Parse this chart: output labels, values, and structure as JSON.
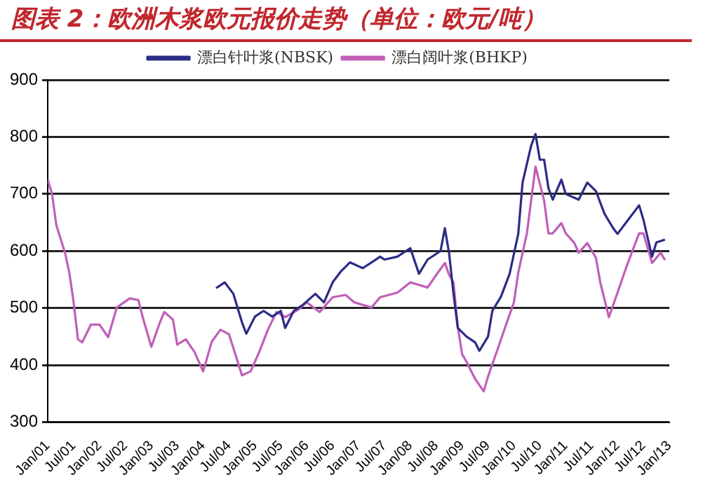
{
  "chart_data": {
    "type": "line",
    "title": "图表 2：欧洲木浆欧元报价走势（单位：欧元/吨）",
    "xlim": [
      "2001-01",
      "2013-01"
    ],
    "xticks": [
      {
        "value": "2001-01",
        "label": "Jan/01"
      },
      {
        "value": "2001-07",
        "label": "Jul/01"
      },
      {
        "value": "2002-01",
        "label": "Jan/02"
      },
      {
        "value": "2002-07",
        "label": "Jul/02"
      },
      {
        "value": "2003-01",
        "label": "Jan/03"
      },
      {
        "value": "2003-07",
        "label": "Jul/03"
      },
      {
        "value": "2004-01",
        "label": "Jan/04"
      },
      {
        "value": "2004-07",
        "label": "Jul/04"
      },
      {
        "value": "2005-01",
        "label": "Jan/05"
      },
      {
        "value": "2005-07",
        "label": "Jul/05"
      },
      {
        "value": "2006-01",
        "label": "Jan/06"
      },
      {
        "value": "2006-07",
        "label": "Jul/06"
      },
      {
        "value": "2007-01",
        "label": "Jan/07"
      },
      {
        "value": "2007-07",
        "label": "Jul/07"
      },
      {
        "value": "2008-01",
        "label": "Jan/08"
      },
      {
        "value": "2008-07",
        "label": "Jul/08"
      },
      {
        "value": "2009-01",
        "label": "Jan/09"
      },
      {
        "value": "2009-07",
        "label": "Jul/09"
      },
      {
        "value": "2010-01",
        "label": "Jan/10"
      },
      {
        "value": "2010-07",
        "label": "Jul/10"
      },
      {
        "value": "2011-01",
        "label": "Jan/11"
      },
      {
        "value": "2011-07",
        "label": "Jul/11"
      },
      {
        "value": "2012-01",
        "label": "Jan/12"
      },
      {
        "value": "2012-07",
        "label": "Jul/12"
      },
      {
        "value": "2013-01",
        "label": "Jan/13"
      }
    ],
    "ylim": [
      300,
      900
    ],
    "yticks": [
      300,
      400,
      500,
      600,
      700,
      800,
      900
    ],
    "grid": "y",
    "legend": "top",
    "marker": "none",
    "line_style": "solid",
    "series": [
      {
        "name": "漂白针叶浆(NBSK)",
        "color": "#2b2c84",
        "x": [
          "2004-04",
          "2004-06",
          "2004-08",
          "2004-10",
          "2004-11",
          "2005-01",
          "2005-03",
          "2005-05",
          "2005-07",
          "2005-08",
          "2005-10",
          "2005-12",
          "2006-03",
          "2006-05",
          "2006-07",
          "2006-09",
          "2006-11",
          "2007-02",
          "2007-04",
          "2007-06",
          "2007-07",
          "2007-10",
          "2008-01",
          "2008-03",
          "2008-05",
          "2008-08",
          "2008-09",
          "2008-10",
          "2008-11",
          "2008-12",
          "2009-02",
          "2009-04",
          "2009-05",
          "2009-07",
          "2009-08",
          "2009-10",
          "2009-12",
          "2010-02",
          "2010-03",
          "2010-05",
          "2010-06",
          "2010-07",
          "2010-08",
          "2010-09",
          "2010-10",
          "2010-12",
          "2011-01",
          "2011-04",
          "2011-06",
          "2011-08",
          "2011-10",
          "2011-12",
          "2012-01",
          "2012-03",
          "2012-06",
          "2012-07",
          "2012-09",
          "2012-10",
          "2012-12"
        ],
        "values": [
          535,
          545,
          525,
          475,
          455,
          485,
          495,
          485,
          495,
          465,
          495,
          505,
          525,
          510,
          545,
          565,
          580,
          570,
          580,
          590,
          585,
          590,
          605,
          560,
          585,
          600,
          640,
          595,
          525,
          465,
          450,
          440,
          425,
          450,
          495,
          520,
          560,
          630,
          720,
          785,
          805,
          760,
          760,
          710,
          690,
          725,
          700,
          690,
          720,
          705,
          665,
          640,
          630,
          650,
          680,
          655,
          590,
          615,
          620
        ]
      },
      {
        "name": "漂白阔叶浆(BHKP)",
        "color": "#c05fb8",
        "x": [
          "2001-01",
          "2001-02",
          "2001-03",
          "2001-05",
          "2001-06",
          "2001-07",
          "2001-08",
          "2001-09",
          "2001-11",
          "2002-01",
          "2002-03",
          "2002-05",
          "2002-08",
          "2002-10",
          "2002-11",
          "2003-01",
          "2003-03",
          "2003-04",
          "2003-06",
          "2003-07",
          "2003-09",
          "2003-11",
          "2004-01",
          "2004-03",
          "2004-05",
          "2004-07",
          "2004-09",
          "2004-10",
          "2004-12",
          "2005-02",
          "2005-04",
          "2005-06",
          "2005-08",
          "2005-11",
          "2006-01",
          "2006-04",
          "2006-07",
          "2006-10",
          "2006-12",
          "2007-04",
          "2007-06",
          "2007-10",
          "2008-01",
          "2008-05",
          "2008-07",
          "2008-09",
          "2008-10",
          "2008-11",
          "2008-12",
          "2009-01",
          "2009-02",
          "2009-04",
          "2009-06",
          "2009-07",
          "2009-09",
          "2009-11",
          "2010-01",
          "2010-02",
          "2010-04",
          "2010-06",
          "2010-07",
          "2010-08",
          "2010-09",
          "2010-10",
          "2010-12",
          "2011-01",
          "2011-03",
          "2011-04",
          "2011-06",
          "2011-08",
          "2011-09",
          "2011-11",
          "2012-01",
          "2012-03",
          "2012-06",
          "2012-07",
          "2012-09",
          "2012-11",
          "2012-12"
        ],
        "values": [
          725,
          700,
          645,
          597,
          562,
          510,
          445,
          440,
          471,
          471,
          449,
          501,
          517,
          514,
          484,
          432,
          475,
          493,
          480,
          436,
          445,
          423,
          389,
          441,
          462,
          454,
          406,
          382,
          389,
          423,
          462,
          493,
          484,
          497,
          510,
          493,
          519,
          523,
          510,
          501,
          519,
          527,
          545,
          536,
          558,
          579,
          558,
          545,
          467,
          419,
          406,
          376,
          354,
          380,
          423,
          467,
          510,
          562,
          631,
          748,
          718,
          688,
          631,
          631,
          649,
          631,
          614,
          597,
          614,
          588,
          545,
          484,
          527,
          571,
          631,
          631,
          579,
          597,
          584
        ]
      }
    ]
  }
}
